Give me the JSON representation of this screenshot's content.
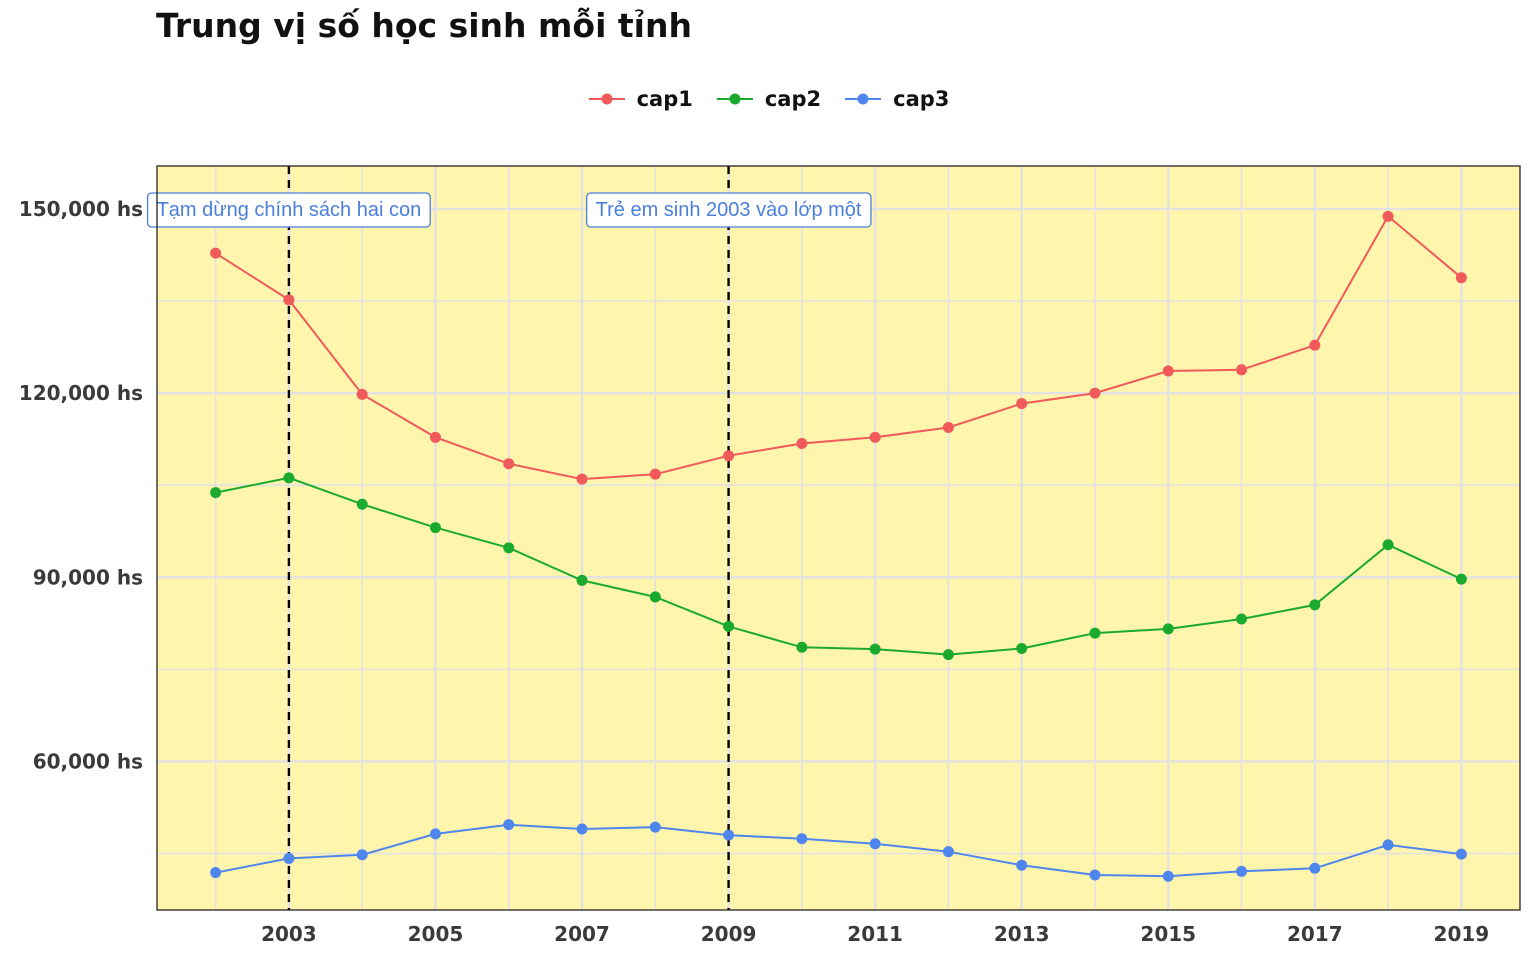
{
  "chart_data": {
    "type": "line",
    "title": "Trung vị số học sinh mỗi tỉnh",
    "xlabel": "",
    "ylabel": "",
    "x": [
      2002,
      2003,
      2004,
      2005,
      2006,
      2007,
      2008,
      2009,
      2010,
      2011,
      2012,
      2013,
      2014,
      2015,
      2016,
      2017,
      2018,
      2019
    ],
    "xlim": [
      2001.2,
      2019.8
    ],
    "ylim": [
      35800,
      157000
    ],
    "x_ticks": [
      2003,
      2005,
      2007,
      2009,
      2011,
      2013,
      2015,
      2017,
      2019
    ],
    "x_tick_labels": [
      "2003",
      "2005",
      "2007",
      "2009",
      "2011",
      "2013",
      "2015",
      "2017",
      "2019"
    ],
    "y_ticks": [
      60000,
      90000,
      120000,
      150000
    ],
    "y_tick_labels": [
      "60,000 hs",
      "90,000 hs",
      "120,000 hs",
      "150,000 hs"
    ],
    "y_minor_ticks": [
      45000,
      75000,
      105000,
      135000
    ],
    "grid": true,
    "legend_position": "top",
    "series": [
      {
        "name": "cap1",
        "color": "#f05a5a",
        "values": [
          142800,
          135200,
          119800,
          112800,
          108500,
          106000,
          106800,
          109800,
          111800,
          112800,
          114400,
          118300,
          120000,
          123600,
          123800,
          127800,
          148800,
          138800
        ]
      },
      {
        "name": "cap2",
        "color": "#1aab2e",
        "values": [
          103800,
          106200,
          101900,
          98100,
          94800,
          89500,
          86800,
          82000,
          78600,
          78300,
          77400,
          78400,
          80900,
          81600,
          83200,
          85500,
          95300,
          89700
        ]
      },
      {
        "name": "cap3",
        "color": "#4f86ee",
        "values": [
          41900,
          44200,
          44800,
          48200,
          49700,
          49000,
          49300,
          48000,
          47400,
          46600,
          45300,
          43100,
          41500,
          41300,
          42100,
          42600,
          46400,
          44900
        ]
      }
    ],
    "vlines": [
      2003,
      2009
    ],
    "annotations": [
      {
        "text": "Tạm dừng chính sách hai con",
        "x": 2003,
        "y": 150000
      },
      {
        "text": "Trẻ em sinh 2003 vào lớp một",
        "x": 2009,
        "y": 150000
      }
    ],
    "panel_color": "#fff5ad",
    "grid_color": "#e2e2e2"
  }
}
